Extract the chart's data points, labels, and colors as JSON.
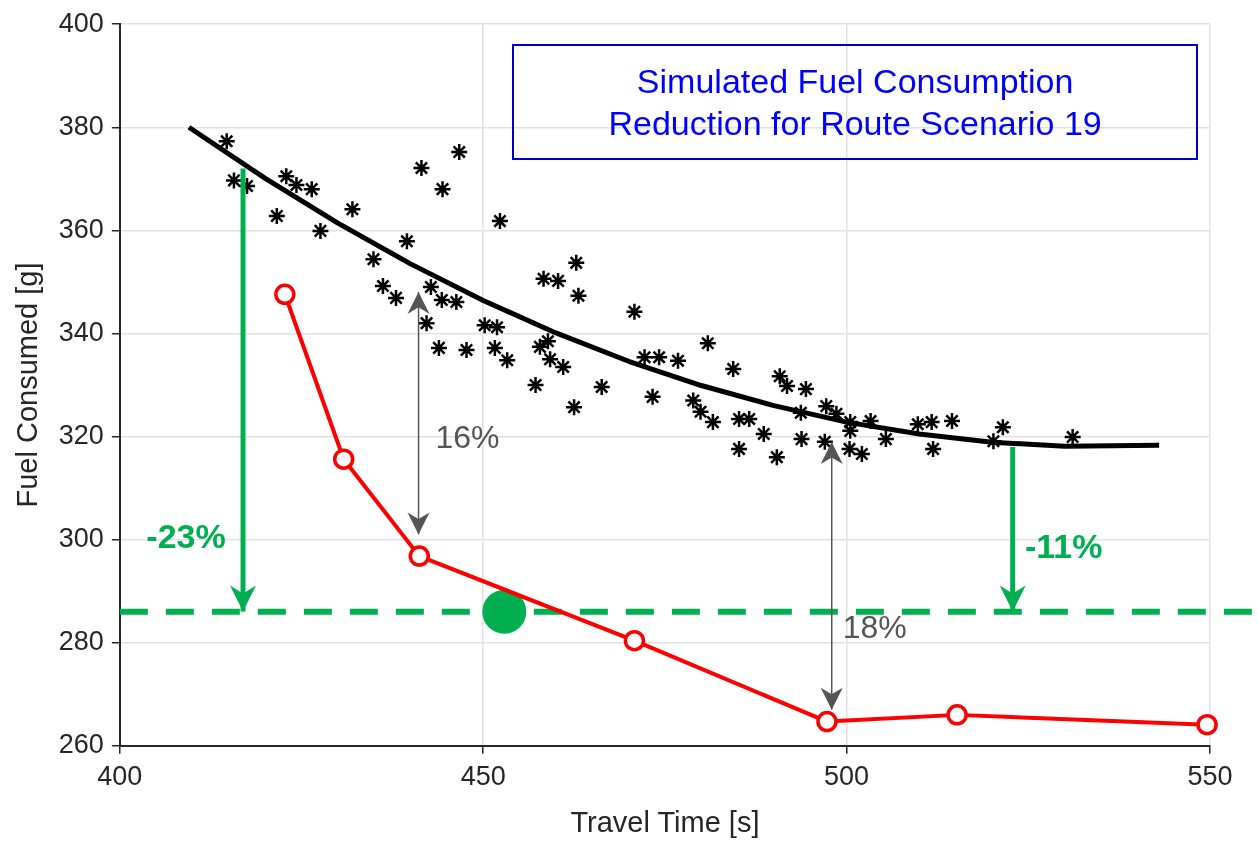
{
  "chart_data": {
    "type": "scatter",
    "title": "Simulated Fuel Consumption\nReduction for Route Scenario 19",
    "xlabel": "Travel Time [s]",
    "ylabel": "Fuel Consumed [g]",
    "xlim": [
      400,
      550
    ],
    "xticks": [
      400,
      450,
      500,
      550
    ],
    "ylim": [
      260,
      400
    ],
    "yticks": [
      260,
      280,
      300,
      320,
      340,
      360,
      380,
      400
    ],
    "grid": true,
    "legend": false,
    "series": [
      {
        "marker": "cross",
        "color": "#000000",
        "x": [
          414.7,
          415.7,
          417.5,
          421.6,
          422.9,
          424.3,
          426.4,
          427.6,
          432.0,
          434.9,
          436.2,
          438.0,
          439.5,
          441.5,
          444.4,
          446.7,
          442.2,
          442.8,
          444.3,
          446.3,
          443.9,
          447.7,
          450.2,
          451.9,
          451.6,
          452.3,
          453.3,
          457.2,
          457.8,
          458.3,
          458.9,
          459.2,
          460.3,
          461.0,
          462.5,
          462.8,
          463.1,
          466.3,
          470.8,
          472.2,
          473.3,
          474.2,
          476.8,
          478.9,
          479.9,
          480.9,
          481.6,
          484.4,
          485.2,
          485.2,
          486.6,
          488.6,
          490.4,
          490.8,
          491.8,
          493.7,
          493.8,
          494.4,
          497.0,
          497.2,
          498.6,
          500.4,
          500.5,
          500.5,
          502.1,
          503.3,
          505.4,
          509.8,
          511.7,
          511.9,
          514.5,
          520.2,
          521.5,
          531.1
        ],
        "values": [
          377.3,
          369.7,
          368.6,
          362.8,
          370.5,
          368.8,
          368.0,
          359.9,
          364.1,
          354.4,
          349.2,
          346.9,
          357.9,
          372.1,
          368.0,
          375.2,
          342.0,
          349.0,
          346.5,
          346.1,
          337.2,
          336.8,
          341.6,
          341.2,
          337.2,
          361.8,
          334.8,
          330.0,
          337.4,
          350.6,
          338.5,
          335.0,
          350.2,
          333.5,
          325.7,
          353.7,
          347.3,
          329.6,
          344.2,
          335.4,
          327.7,
          335.4,
          334.7,
          327.0,
          324.8,
          338.1,
          322.8,
          333.1,
          323.4,
          317.6,
          323.4,
          320.5,
          316.0,
          331.7,
          329.8,
          324.6,
          319.5,
          329.2,
          319.0,
          325.9,
          324.4,
          317.6,
          322.8,
          321.1,
          316.6,
          323.0,
          319.5,
          322.4,
          322.8,
          317.6,
          323.0,
          319.1,
          321.8,
          319.9
        ]
      },
      {
        "type": "line",
        "marker": "none",
        "color": "#000000",
        "x": [
          409.5,
          420,
          430,
          440,
          450,
          460,
          470,
          480,
          490,
          500,
          510,
          520,
          530,
          543
        ],
        "values": [
          380,
          370.1,
          361.4,
          353.5,
          346.4,
          340.1,
          334.6,
          329.9,
          326.0,
          322.8,
          320.5,
          318.9,
          318.1,
          318.3
        ]
      },
      {
        "type": "line",
        "marker": "circle",
        "color": "#ff0000",
        "x": [
          422.7,
          430.8,
          441.2,
          470.8,
          497.3,
          515.2,
          549.6
        ],
        "values": [
          347.6,
          315.6,
          296.8,
          280.4,
          264.7,
          266.0,
          264.1
        ]
      },
      {
        "marker": "circle",
        "color": "#00b050",
        "x": [
          452.9
        ],
        "values": [
          286.0
        ]
      }
    ],
    "ref_lines": [
      {
        "axis": "y",
        "value": 286,
        "color": "#00b050",
        "line_style": "dashed"
      }
    ],
    "annotations": [
      "-23%",
      "-11%",
      "16%",
      "18%"
    ]
  }
}
